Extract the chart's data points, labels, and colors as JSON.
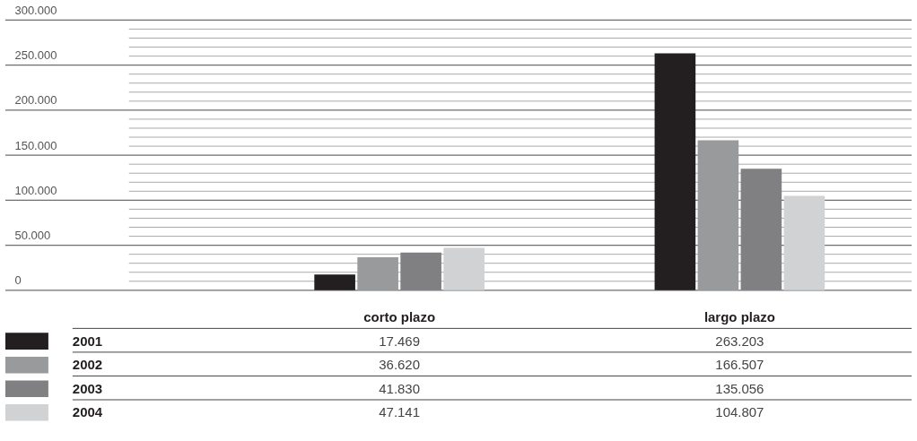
{
  "chart_data": {
    "type": "bar",
    "categories": [
      "corto plazo",
      "largo plazo"
    ],
    "series": [
      {
        "name": "2001",
        "color": "#231f20",
        "values": [
          17469,
          263203
        ]
      },
      {
        "name": "2002",
        "color": "#999a9c",
        "values": [
          36620,
          166507
        ]
      },
      {
        "name": "2003",
        "color": "#808082",
        "values": [
          41830,
          135056
        ]
      },
      {
        "name": "2004",
        "color": "#d1d2d4",
        "values": [
          47141,
          104807
        ]
      }
    ],
    "ylim": [
      0,
      300000
    ],
    "yticks": [
      {
        "value": 0,
        "label": "0"
      },
      {
        "value": 10000,
        "label": null
      },
      {
        "value": 20000,
        "label": null
      },
      {
        "value": 30000,
        "label": null
      },
      {
        "value": 40000,
        "label": null
      },
      {
        "value": 50000,
        "label": "50.000"
      },
      {
        "value": 60000,
        "label": null
      },
      {
        "value": 70000,
        "label": null
      },
      {
        "value": 80000,
        "label": null
      },
      {
        "value": 90000,
        "label": null
      },
      {
        "value": 100000,
        "label": "100.000"
      },
      {
        "value": 110000,
        "label": null
      },
      {
        "value": 120000,
        "label": null
      },
      {
        "value": 130000,
        "label": null
      },
      {
        "value": 140000,
        "label": null
      },
      {
        "value": 150000,
        "label": "150.000"
      },
      {
        "value": 160000,
        "label": null
      },
      {
        "value": 170000,
        "label": null
      },
      {
        "value": 180000,
        "label": null
      },
      {
        "value": 190000,
        "label": null
      },
      {
        "value": 200000,
        "label": "200.000"
      },
      {
        "value": 210000,
        "label": null
      },
      {
        "value": 220000,
        "label": null
      },
      {
        "value": 230000,
        "label": null
      },
      {
        "value": 240000,
        "label": null
      },
      {
        "value": 250000,
        "label": "250.000"
      },
      {
        "value": 260000,
        "label": null
      },
      {
        "value": 270000,
        "label": null
      },
      {
        "value": 280000,
        "label": null
      },
      {
        "value": 290000,
        "label": null
      },
      {
        "value": 300000,
        "label": "300.000"
      }
    ],
    "value_labels": [
      [
        "17.469",
        "263.203"
      ],
      [
        "36.620",
        "166.507"
      ],
      [
        "41.830",
        "135.056"
      ],
      [
        "47.141",
        "104.807"
      ]
    ],
    "grid": "y",
    "legend": "bottom"
  }
}
